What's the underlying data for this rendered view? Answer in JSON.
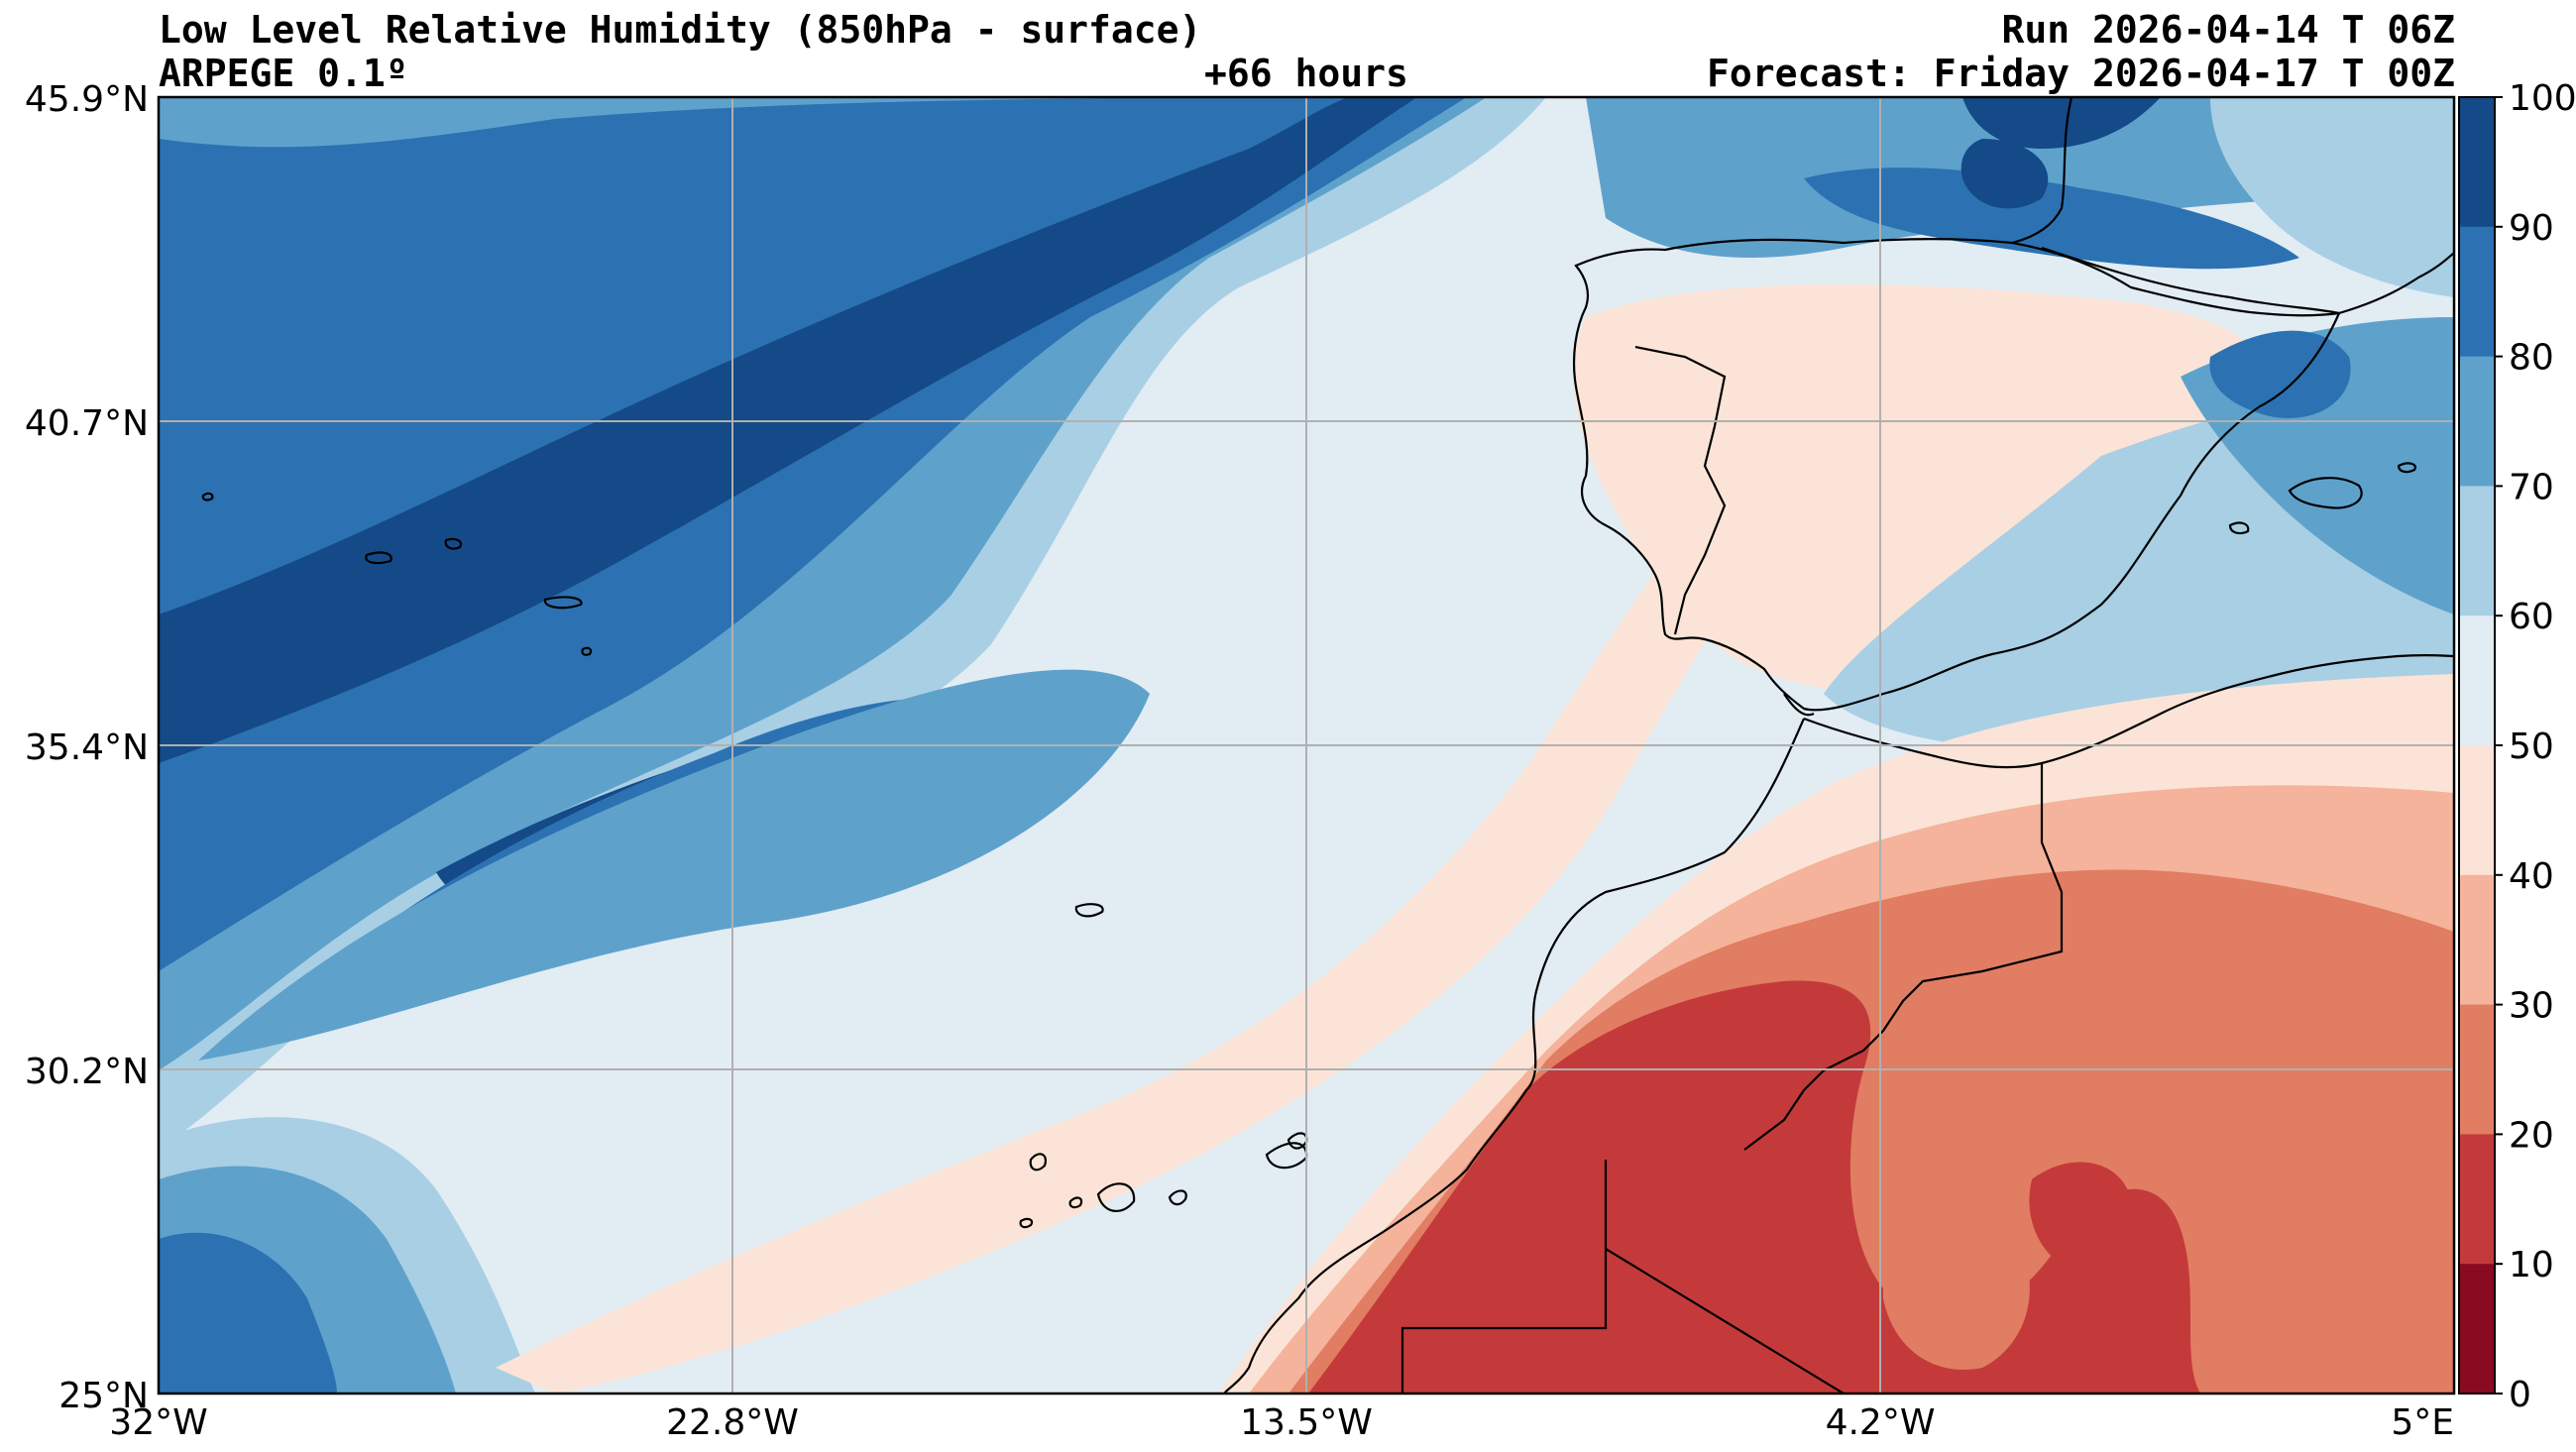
{
  "header": {
    "title": "Low Level Relative Humidity (850hPa - surface)",
    "model": "ARPEGE 0.1º",
    "lead_time": "+66 hours",
    "run": "Run 2026-04-14 T 06Z",
    "forecast": "Forecast: Friday 2026-04-17 T 00Z"
  },
  "map": {
    "lon_ticks": [
      "32°W",
      "22.8°W",
      "13.5°W",
      "4.2°W",
      "5°E"
    ],
    "lat_ticks": [
      "45.9°N",
      "40.7°N",
      "35.4°N",
      "30.2°N",
      "25°N"
    ],
    "lon_range": [
      -32,
      5
    ],
    "lat_range": [
      25,
      45.9
    ],
    "grid": true
  },
  "colorbar": {
    "labels": [
      "100",
      "90",
      "80",
      "70",
      "60",
      "50",
      "40",
      "30",
      "20",
      "10",
      "0"
    ],
    "colors": [
      "#144a87",
      "#2c72b2",
      "#5ea2cc",
      "#a9cfe4",
      "#e2ecf3",
      "#fbe4d7",
      "#f4b39a",
      "#e17d62",
      "#c43a3a",
      "#8a0a22"
    ],
    "bands": [
      "90-100",
      "80-90",
      "70-80",
      "60-70",
      "50-60",
      "40-50",
      "30-40",
      "20-30",
      "10-20",
      "0-10"
    ]
  }
}
